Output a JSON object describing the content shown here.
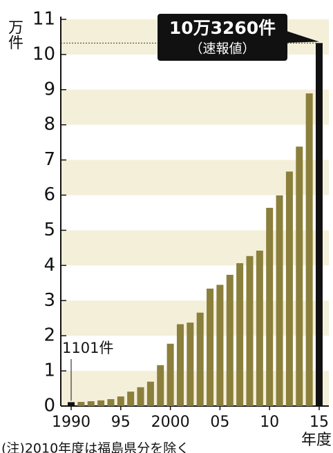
{
  "chart_data": {
    "type": "bar",
    "unit_label": "万件",
    "x_label": "年度",
    "note": "(注)2010年度は福島県分を除く",
    "categories": [
      "1990",
      null,
      null,
      null,
      null,
      "95",
      null,
      null,
      null,
      null,
      "2000",
      null,
      null,
      null,
      null,
      "05",
      null,
      null,
      null,
      null,
      "10",
      null,
      null,
      null,
      null,
      "15"
    ],
    "values": [
      0.1101,
      0.1171,
      0.1372,
      0.1611,
      0.1961,
      0.2722,
      0.4102,
      0.5352,
      0.6932,
      1.1631,
      1.7725,
      2.3274,
      2.3738,
      2.6569,
      3.3408,
      3.4472,
      3.7323,
      4.0639,
      4.2664,
      4.4211,
      5.6384,
      5.9919,
      6.6701,
      7.3802,
      8.8931,
      10.326
    ],
    "value_labels": [
      "1101件",
      null,
      null,
      null,
      null,
      null,
      null,
      null,
      null,
      null,
      null,
      null,
      null,
      null,
      null,
      null,
      null,
      null,
      null,
      null,
      null,
      null,
      null,
      null,
      null,
      "10万3260件"
    ],
    "callout_sub": "（速報値）",
    "color": "#8b7f3c",
    "highlight_color": "#111111",
    "highlight_indices": [
      0,
      25
    ],
    "band_color": "#f4efd9",
    "ylim": [
      0,
      11
    ],
    "yticks": [
      0,
      1,
      2,
      3,
      4,
      5,
      6,
      7,
      8,
      9,
      10,
      11
    ]
  }
}
